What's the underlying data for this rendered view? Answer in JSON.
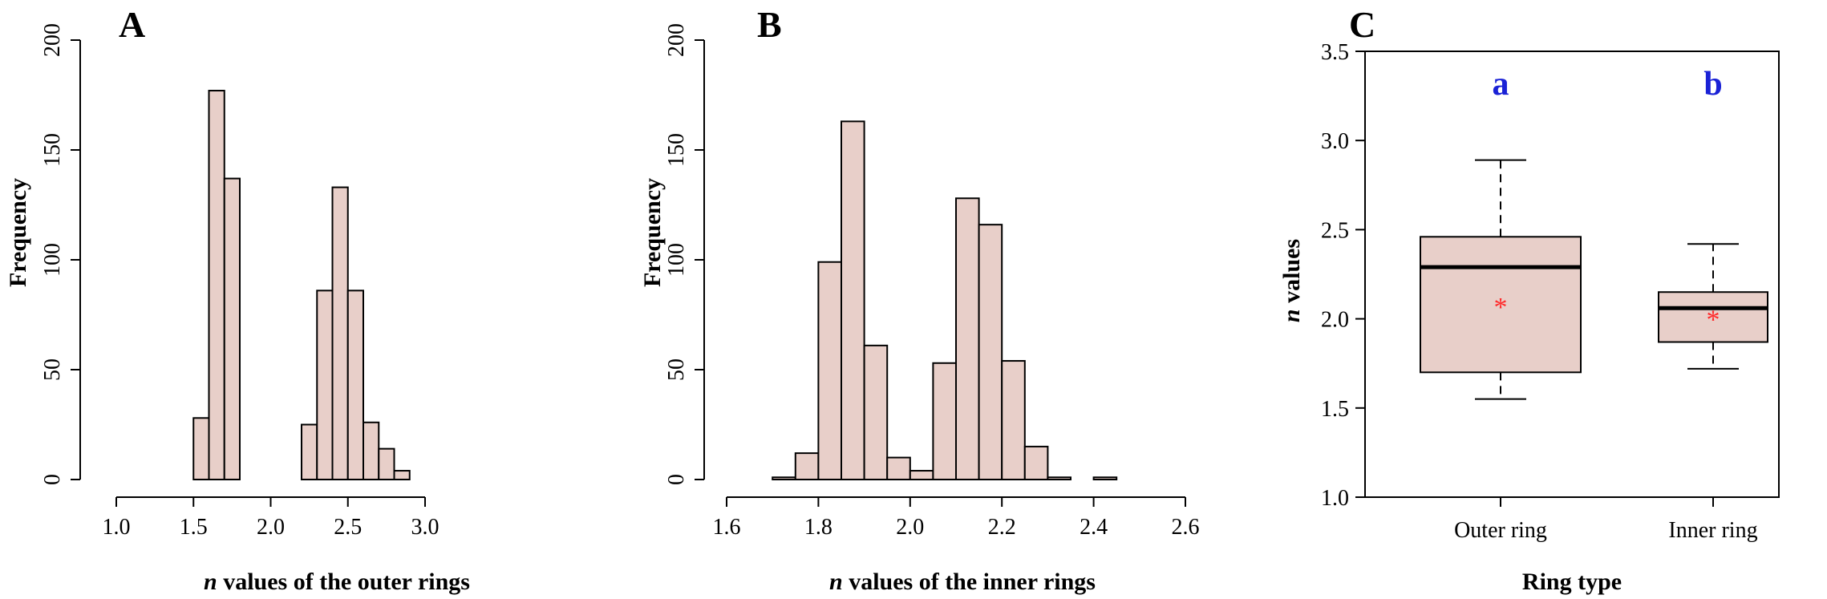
{
  "panels": [
    {
      "id": "A",
      "letter": "A",
      "chart_data": {
        "type": "bar",
        "ylabel": "Frequency",
        "xlabel_italic": "n",
        "xlabel_rest": " values of the outer rings",
        "xlim": [
          1.0,
          3.0
        ],
        "ylim": [
          0,
          200
        ],
        "xticks": [
          "1.0",
          "1.5",
          "2.0",
          "2.5",
          "3.0"
        ],
        "xtick_values": [
          1.0,
          1.5,
          2.0,
          2.5,
          3.0
        ],
        "yticks": [
          "0",
          "50",
          "100",
          "150",
          "200"
        ],
        "ytick_values": [
          0,
          50,
          100,
          150,
          200
        ],
        "bin_width": 0.1,
        "bins_start": [
          1.5,
          1.6,
          1.7,
          1.8,
          1.9,
          2.0,
          2.1,
          2.2,
          2.3,
          2.4,
          2.5,
          2.6,
          2.7,
          2.8
        ],
        "values": [
          28,
          177,
          137,
          0,
          0,
          0,
          0,
          25,
          86,
          133,
          86,
          26,
          14,
          4
        ]
      }
    },
    {
      "id": "B",
      "letter": "B",
      "chart_data": {
        "type": "bar",
        "ylabel": "Frequency",
        "xlabel_italic": "n",
        "xlabel_rest": " values of the inner rings",
        "xlim": [
          1.6,
          2.6
        ],
        "ylim": [
          0,
          200
        ],
        "xticks": [
          "1.6",
          "1.8",
          "2.0",
          "2.2",
          "2.4",
          "2.6"
        ],
        "xtick_values": [
          1.6,
          1.8,
          2.0,
          2.2,
          2.4,
          2.6
        ],
        "yticks": [
          "0",
          "50",
          "100",
          "150",
          "200"
        ],
        "ytick_values": [
          0,
          50,
          100,
          150,
          200
        ],
        "bin_width": 0.05,
        "bins_start": [
          1.7,
          1.75,
          1.8,
          1.85,
          1.9,
          1.95,
          2.0,
          2.05,
          2.1,
          2.15,
          2.2,
          2.25,
          2.3,
          2.35,
          2.4
        ],
        "values": [
          1,
          12,
          99,
          163,
          61,
          10,
          4,
          53,
          128,
          116,
          54,
          15,
          1,
          0,
          1
        ]
      }
    },
    {
      "id": "C",
      "letter": "C",
      "chart_data": {
        "type": "box",
        "ylabel_italic": "n",
        "ylabel_rest": " values",
        "xlabel": "Ring type",
        "ylim": [
          1.0,
          3.5
        ],
        "yticks": [
          "1.0",
          "1.5",
          "2.0",
          "2.5",
          "3.0",
          "3.5"
        ],
        "ytick_values": [
          1.0,
          1.5,
          2.0,
          2.5,
          3.0,
          3.5
        ],
        "groups": [
          {
            "name": "Outer ring",
            "whisker_low": 1.55,
            "q1": 1.7,
            "median": 2.29,
            "q3": 2.46,
            "whisker_high": 2.89,
            "mean": 2.08,
            "mean_marker": "*",
            "letter": "a"
          },
          {
            "name": "Inner ring",
            "whisker_low": 1.72,
            "q1": 1.87,
            "median": 2.06,
            "q3": 2.15,
            "whisker_high": 2.42,
            "mean": 2.01,
            "mean_marker": "*",
            "letter": "b"
          }
        ]
      }
    }
  ],
  "colors": {
    "bar_fill": "#e8cfc9",
    "box_fill": "#e8cfc9",
    "stroke": "#000000",
    "significance": "#1a22d6",
    "mean": "#ff2a2a"
  }
}
